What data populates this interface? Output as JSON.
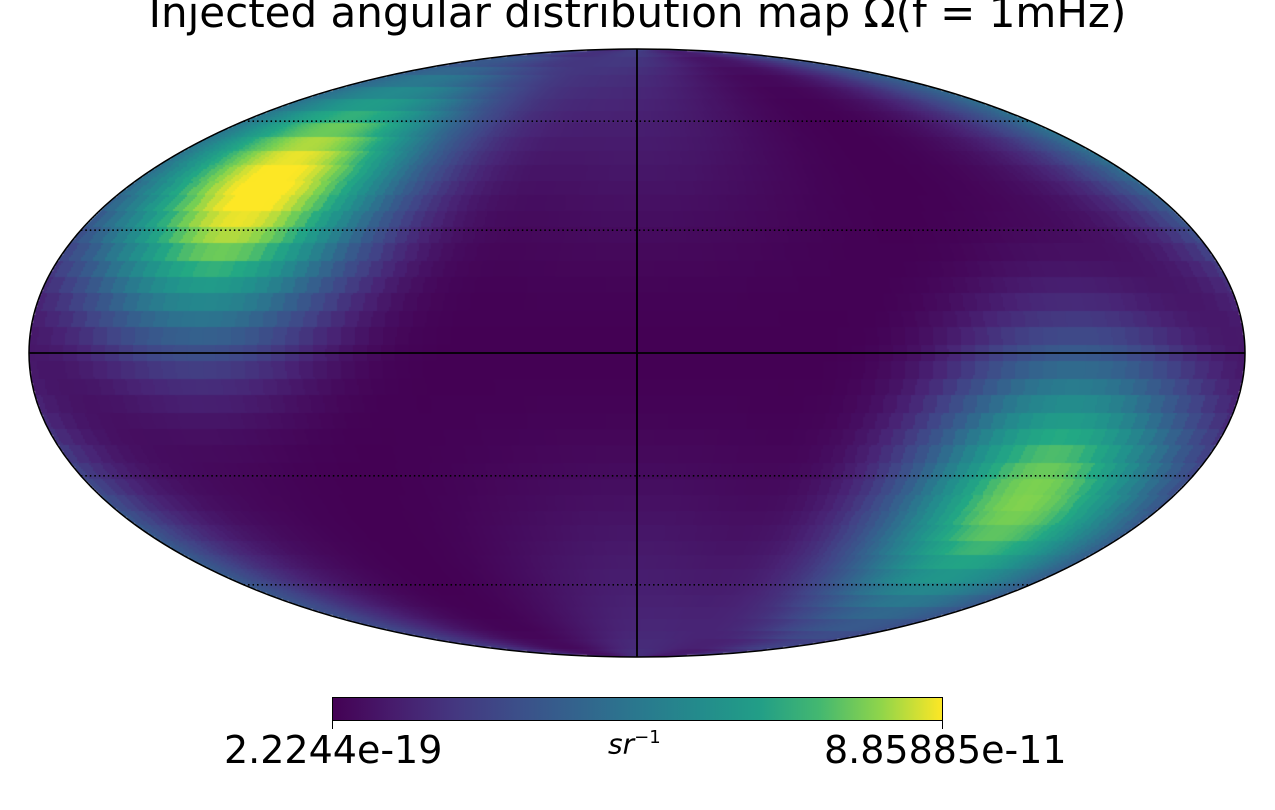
{
  "chart_data": {
    "type": "heatmap",
    "projection": "mollweide",
    "title": "Injected angular distribution map Ω(f = 1mHz)",
    "colormap": "viridis",
    "colorbar": {
      "min_label": "2.2244e-19",
      "max_label": "8.85885e-11",
      "unit_base": "sr",
      "unit_exponent": "−1"
    },
    "graticule": {
      "dotted": true,
      "meridian_spacing_deg": 30,
      "parallel_spacing_deg": 30
    },
    "hotspots": [
      {
        "lon_deg": 130,
        "lat_deg": 40,
        "relative_intensity": 1.0
      },
      {
        "lon_deg": -130,
        "lat_deg": -35,
        "relative_intensity": 0.85
      }
    ]
  }
}
